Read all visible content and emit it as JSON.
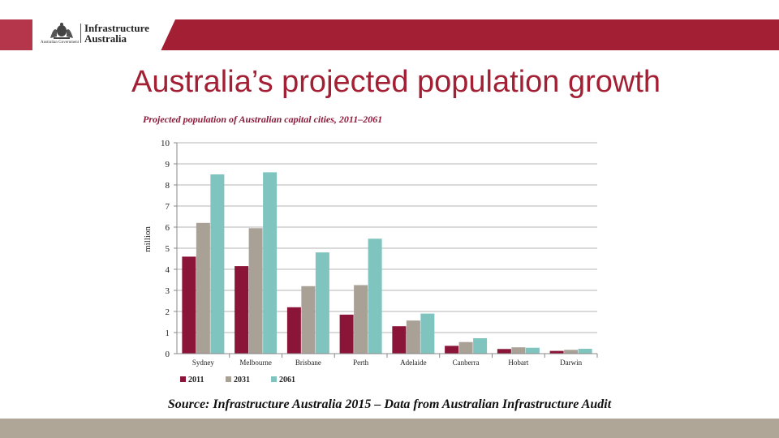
{
  "header": {
    "logo_line1": "Infrastructure",
    "logo_line2": "Australia",
    "crest_caption": "Australian Government",
    "colors": {
      "band": "#a31f34",
      "accent": "#b5364a"
    }
  },
  "slide": {
    "title": "Australia’s projected population growth",
    "source": "Source:  Infrastructure Australia 2015 – Data from Australian Infrastructure Audit"
  },
  "chart_data": {
    "type": "bar",
    "title": "Projected population of Australian capital cities, 2011–2061",
    "xlabel": "",
    "ylabel": "million",
    "ylim": [
      0,
      10
    ],
    "yticks": [
      0,
      1,
      2,
      3,
      4,
      5,
      6,
      7,
      8,
      9,
      10
    ],
    "grid": true,
    "legend_position": "bottom-left",
    "categories": [
      "Sydney",
      "Melbourne",
      "Brisbane",
      "Perth",
      "Adelaide",
      "Canberra",
      "Hobart",
      "Darwin"
    ],
    "series": [
      {
        "name": "2011",
        "color": "#8b1538",
        "values": [
          4.6,
          4.15,
          2.2,
          1.85,
          1.3,
          0.37,
          0.22,
          0.13
        ]
      },
      {
        "name": "2031",
        "color": "#aaa196",
        "values": [
          6.2,
          5.95,
          3.2,
          3.25,
          1.57,
          0.55,
          0.3,
          0.18
        ]
      },
      {
        "name": "2061",
        "color": "#7fc4be",
        "values": [
          8.5,
          8.6,
          4.8,
          5.45,
          1.9,
          0.73,
          0.28,
          0.23
        ]
      }
    ]
  }
}
